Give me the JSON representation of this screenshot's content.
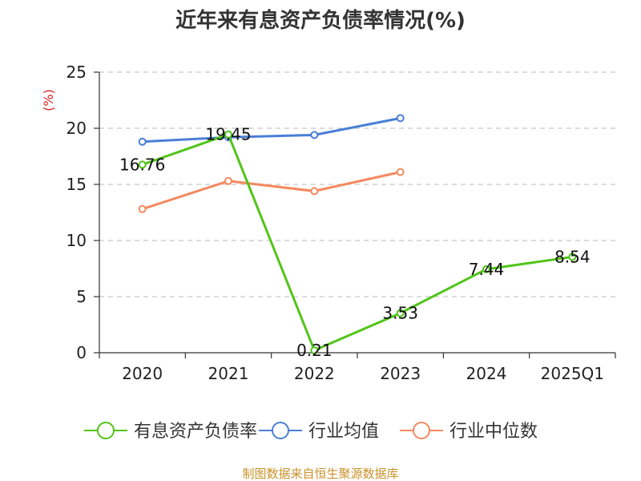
{
  "chart_data": {
    "type": "line",
    "title": "近年来有息资产负债率情况(%)",
    "ylabel": "(%)",
    "xlabel": "",
    "categories": [
      "2020",
      "2021",
      "2022",
      "2023",
      "2024",
      "2025Q1"
    ],
    "ylim": [
      0,
      25
    ],
    "yticks": [
      0,
      5,
      10,
      15,
      20,
      25
    ],
    "grid": true,
    "legend_position": "bottom",
    "series": [
      {
        "name": "有息资产负债率",
        "color": "#52c41a",
        "values": [
          16.76,
          19.45,
          0.21,
          3.53,
          7.44,
          8.54
        ],
        "labels": [
          "16.76",
          "19.45",
          "0.21",
          "3.53",
          "7.44",
          "8.54"
        ]
      },
      {
        "name": "行业均值",
        "color": "#4a7fd6",
        "values": [
          18.8,
          19.2,
          19.4,
          20.9,
          null,
          null
        ]
      },
      {
        "name": "行业中位数",
        "color": "#f4895f",
        "values": [
          12.8,
          15.3,
          14.4,
          16.1,
          null,
          null
        ]
      }
    ]
  },
  "source": "制图数据来自恒生聚源数据库"
}
